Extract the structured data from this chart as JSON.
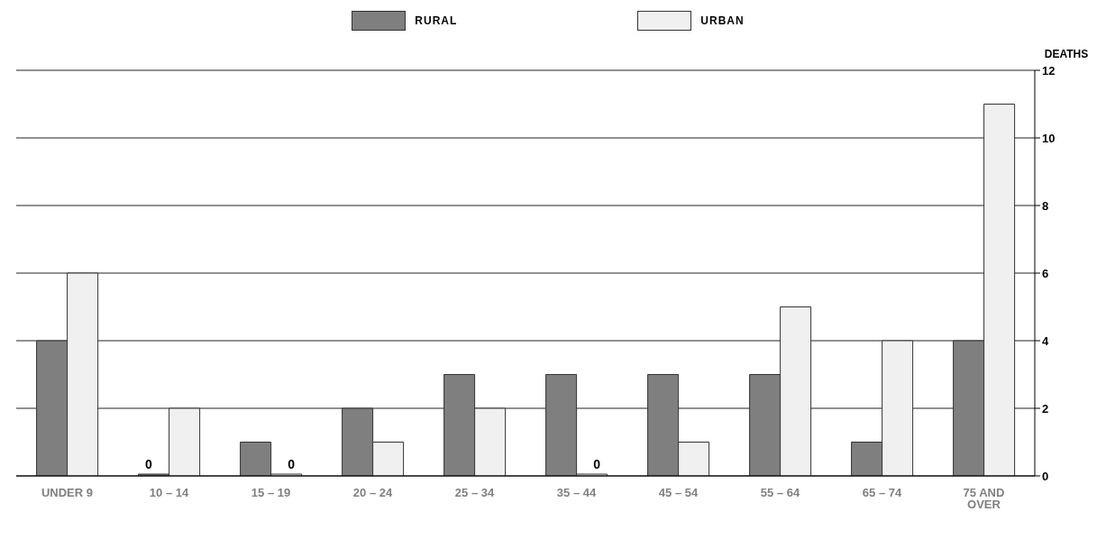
{
  "chart_data": {
    "type": "bar",
    "ylabel": "DEATHS",
    "categories": [
      "UNDER 9",
      "10 – 14",
      "15 – 19",
      "20 – 24",
      "25 – 34",
      "35 – 44",
      "45 – 54",
      "55 – 64",
      "65 – 74",
      "75 AND OVER"
    ],
    "series": [
      {
        "name": "RURAL",
        "color": "#7f7f7f",
        "values": [
          4,
          0,
          1,
          2,
          3,
          3,
          3,
          3,
          1,
          4
        ],
        "value_labels": [
          null,
          "0",
          null,
          null,
          null,
          null,
          null,
          null,
          null,
          null
        ]
      },
      {
        "name": "URBAN",
        "color": "#f0f0f0",
        "values": [
          6,
          2,
          0,
          1,
          2,
          0,
          1,
          5,
          4,
          11
        ],
        "value_labels": [
          null,
          null,
          "0",
          null,
          null,
          "0",
          null,
          null,
          null,
          null
        ]
      }
    ],
    "ylim": [
      0,
      12
    ],
    "yticks": [
      0,
      2,
      4,
      6,
      8,
      10,
      12
    ],
    "grid": "y",
    "legend": "top"
  }
}
